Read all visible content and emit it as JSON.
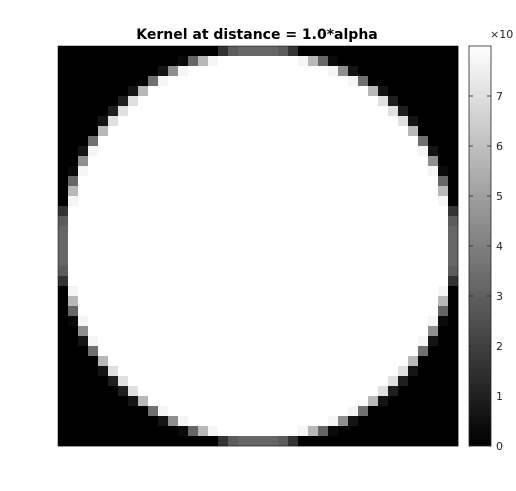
{
  "chart_data": {
    "type": "heatmap",
    "title": "Kernel at distance = 1.0*alpha",
    "grid_size": 40,
    "kernel_shape": "disk",
    "disk_radius_cells": 19.5,
    "colormap": "gray",
    "inside_value": 8,
    "outside_value": 0,
    "colorbar": {
      "ticks": [
        0,
        1,
        2,
        3,
        4,
        5,
        6,
        7
      ],
      "tick_labels": [
        "0",
        "1",
        "2",
        "3",
        "4",
        "5",
        "6",
        "7"
      ],
      "exponent_label": "×10",
      "range": [
        0,
        8
      ]
    },
    "grid": false
  }
}
